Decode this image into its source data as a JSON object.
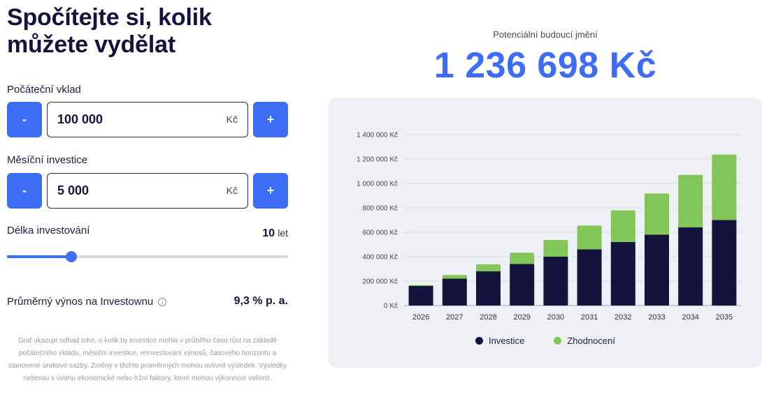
{
  "title_line1": "Spočítejte si, kolik",
  "title_line2": "můžete vydělat",
  "initial_deposit": {
    "label": "Počáteční vklad",
    "value": "100 000",
    "unit": "Kč",
    "minus": "-",
    "plus": "+"
  },
  "monthly_investment": {
    "label": "Měsíční investice",
    "value": "5 000",
    "unit": "Kč",
    "minus": "-",
    "plus": "+"
  },
  "duration": {
    "label": "Délka investování",
    "value": "10",
    "unit": "let",
    "slider_fraction": 0.23
  },
  "yield": {
    "label": "Průměrný výnos na Investownu",
    "info_symbol": "i",
    "value": "9,3 % p. a."
  },
  "disclaimer": "Graf ukazuje odhad toho, o kolik by investice mohla v průběhu času růst na základě počátečního vkladu, měsíční investice, reinvestování výnosů, časového horizontu a stanovené úrokové sazby. Změny v těchto proměnných mohou ovlivnit výsledek. Výsledky neberou v úvahu ekonomické nebo tržní faktory, které mohou výkonnost ovlivnit.",
  "future_wealth": {
    "label": "Potenciální budoucí jmění",
    "value": "1 236 698 Kč"
  },
  "colors": {
    "accent": "#3d6cf5",
    "investice": "#14133b",
    "zhodnoceni": "#82c65a"
  },
  "chart_data": {
    "type": "bar",
    "stacked": true,
    "categories": [
      "2026",
      "2027",
      "2028",
      "2029",
      "2030",
      "2031",
      "2032",
      "2033",
      "2034",
      "2035"
    ],
    "series": [
      {
        "name": "Investice",
        "color": "#14133b",
        "values": [
          160000,
          220000,
          280000,
          340000,
          400000,
          460000,
          520000,
          580000,
          640000,
          700000
        ]
      },
      {
        "name": "Zhodnocení",
        "color": "#82c65a",
        "values": [
          8000,
          30000,
          58000,
          93000,
          137000,
          195000,
          260000,
          338000,
          430000,
          536698
        ]
      }
    ],
    "ylim": [
      0,
      1400000
    ],
    "yticks": [
      0,
      200000,
      400000,
      600000,
      800000,
      1000000,
      1200000,
      1400000
    ],
    "ytick_labels": [
      "0 Kč",
      "200 000 Kč",
      "400 000 Kč",
      "600 000 Kč",
      "800 000 Kč",
      "1 000 000 Kč",
      "1 200 000 Kč",
      "1 400 000 Kč"
    ],
    "grid": true,
    "legend_position": "bottom"
  }
}
